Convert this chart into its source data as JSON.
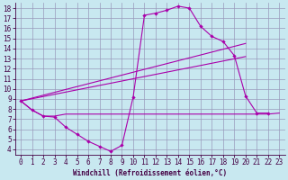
{
  "xlabel": "Windchill (Refroidissement éolien,°C)",
  "xlim": [
    -0.5,
    23.5
  ],
  "ylim": [
    3.5,
    18.5
  ],
  "xticks": [
    0,
    1,
    2,
    3,
    4,
    5,
    6,
    7,
    8,
    9,
    10,
    11,
    12,
    13,
    14,
    15,
    16,
    17,
    18,
    19,
    20,
    21,
    22,
    23
  ],
  "yticks": [
    4,
    5,
    6,
    7,
    8,
    9,
    10,
    11,
    12,
    13,
    14,
    15,
    16,
    17,
    18
  ],
  "bg_color": "#c8e8f0",
  "line_color": "#aa00aa",
  "grid_color": "#9999bb",
  "s1x": [
    0,
    1,
    2,
    3,
    4,
    5,
    6,
    7,
    8,
    9,
    10,
    11,
    12,
    13,
    14,
    15,
    16,
    17,
    18,
    19,
    20,
    21,
    22
  ],
  "s1y": [
    8.8,
    7.9,
    7.3,
    7.2,
    6.2,
    5.5,
    4.8,
    4.3,
    3.8,
    4.4,
    9.2,
    17.3,
    17.5,
    17.8,
    18.2,
    18.0,
    16.2,
    15.2,
    14.7,
    13.3,
    9.3,
    7.6,
    7.6
  ],
  "s2x": [
    0,
    1,
    2,
    3,
    4,
    5,
    6,
    7,
    8,
    9,
    10,
    11,
    12,
    13,
    14,
    15,
    16,
    17,
    18,
    19,
    20,
    21,
    22,
    23
  ],
  "s2y": [
    8.8,
    7.9,
    7.3,
    7.3,
    7.5,
    7.5,
    7.5,
    7.5,
    7.5,
    7.5,
    7.5,
    7.5,
    7.5,
    7.5,
    7.5,
    7.5,
    7.5,
    7.5,
    7.5,
    7.5,
    7.5,
    7.5,
    7.5,
    7.6
  ],
  "s3x": [
    0,
    20
  ],
  "s3y": [
    8.8,
    14.5
  ],
  "s4x": [
    0,
    20
  ],
  "s4y": [
    8.8,
    13.2
  ],
  "tick_fontsize": 5.5,
  "label_fontsize": 5.5
}
